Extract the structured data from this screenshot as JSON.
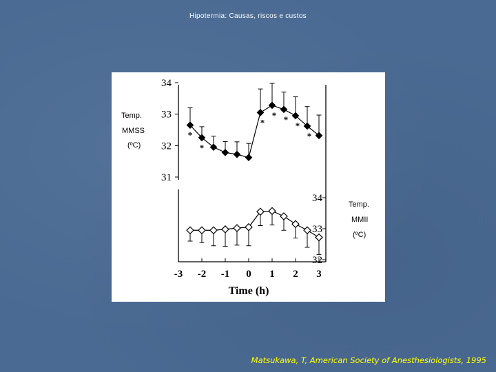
{
  "slide": {
    "title": "Hipotermia: Causas, riscos e custos",
    "citation": "Matsukawa, T, American Society of Anesthesiologists, 1995"
  },
  "labels": {
    "upper_line1": "Temp.",
    "upper_line2": "MMSS",
    "upper_line3": "(ºC)",
    "lower_line1": "Temp.",
    "lower_line2": "MMII",
    "lower_line3": "(ºC)"
  },
  "colors": {
    "background": "#4a6a93",
    "citation": "#ffff00",
    "title": "#ffffff"
  },
  "chart_data": {
    "type": "line",
    "xlabel": "Time (h)",
    "x_ticks": [
      "-3",
      "-2",
      "-1",
      "0",
      "1",
      "2",
      "3"
    ],
    "xlim": [
      -3,
      3
    ],
    "grid": false,
    "panels": [
      {
        "name": "upper",
        "ylabel": "Temp. MMSS (ºC)",
        "ylim": [
          31,
          34
        ],
        "y_ticks": [
          "31",
          "32",
          "33",
          "34"
        ],
        "marker": "filled-diamond",
        "points": [
          {
            "x": -2.5,
            "y": 32.65,
            "err": 0.55,
            "sig": true
          },
          {
            "x": -2.0,
            "y": 32.25,
            "err": 0.35,
            "sig": true
          },
          {
            "x": -1.5,
            "y": 31.95,
            "err": 0.35,
            "sig": false
          },
          {
            "x": -1.0,
            "y": 31.78,
            "err": 0.35,
            "sig": false
          },
          {
            "x": -0.5,
            "y": 31.72,
            "err": 0.4,
            "sig": false
          },
          {
            "x": 0.0,
            "y": 31.62,
            "err": 0.45,
            "sig": false
          },
          {
            "x": 0.5,
            "y": 33.05,
            "err": 0.75,
            "sig": true
          },
          {
            "x": 1.0,
            "y": 33.28,
            "err": 0.7,
            "sig": true
          },
          {
            "x": 1.5,
            "y": 33.15,
            "err": 0.55,
            "sig": true
          },
          {
            "x": 2.0,
            "y": 32.95,
            "err": 0.6,
            "sig": true
          },
          {
            "x": 2.5,
            "y": 32.62,
            "err": 0.62,
            "sig": true
          },
          {
            "x": 3.0,
            "y": 32.32,
            "err": 0.65,
            "sig": false
          }
        ]
      },
      {
        "name": "lower",
        "ylabel": "Temp. MMII (ºC)",
        "ylim": [
          32,
          34
        ],
        "y_ticks": [
          "32",
          "33",
          "34"
        ],
        "marker": "open-diamond",
        "points": [
          {
            "x": -2.5,
            "y": 32.95,
            "err": 0.35
          },
          {
            "x": -2.0,
            "y": 32.95,
            "err": 0.4
          },
          {
            "x": -1.5,
            "y": 32.95,
            "err": 0.5
          },
          {
            "x": -1.0,
            "y": 32.98,
            "err": 0.55
          },
          {
            "x": -0.5,
            "y": 33.02,
            "err": 0.55
          },
          {
            "x": 0.0,
            "y": 33.05,
            "err": 0.6
          },
          {
            "x": 0.5,
            "y": 33.55,
            "err": 0.45
          },
          {
            "x": 1.0,
            "y": 33.57,
            "err": 0.45
          },
          {
            "x": 1.5,
            "y": 33.4,
            "err": 0.45
          },
          {
            "x": 2.0,
            "y": 33.15,
            "err": 0.45
          },
          {
            "x": 2.5,
            "y": 32.95,
            "err": 0.55
          },
          {
            "x": 3.0,
            "y": 32.72,
            "err": 0.55
          }
        ]
      }
    ]
  }
}
